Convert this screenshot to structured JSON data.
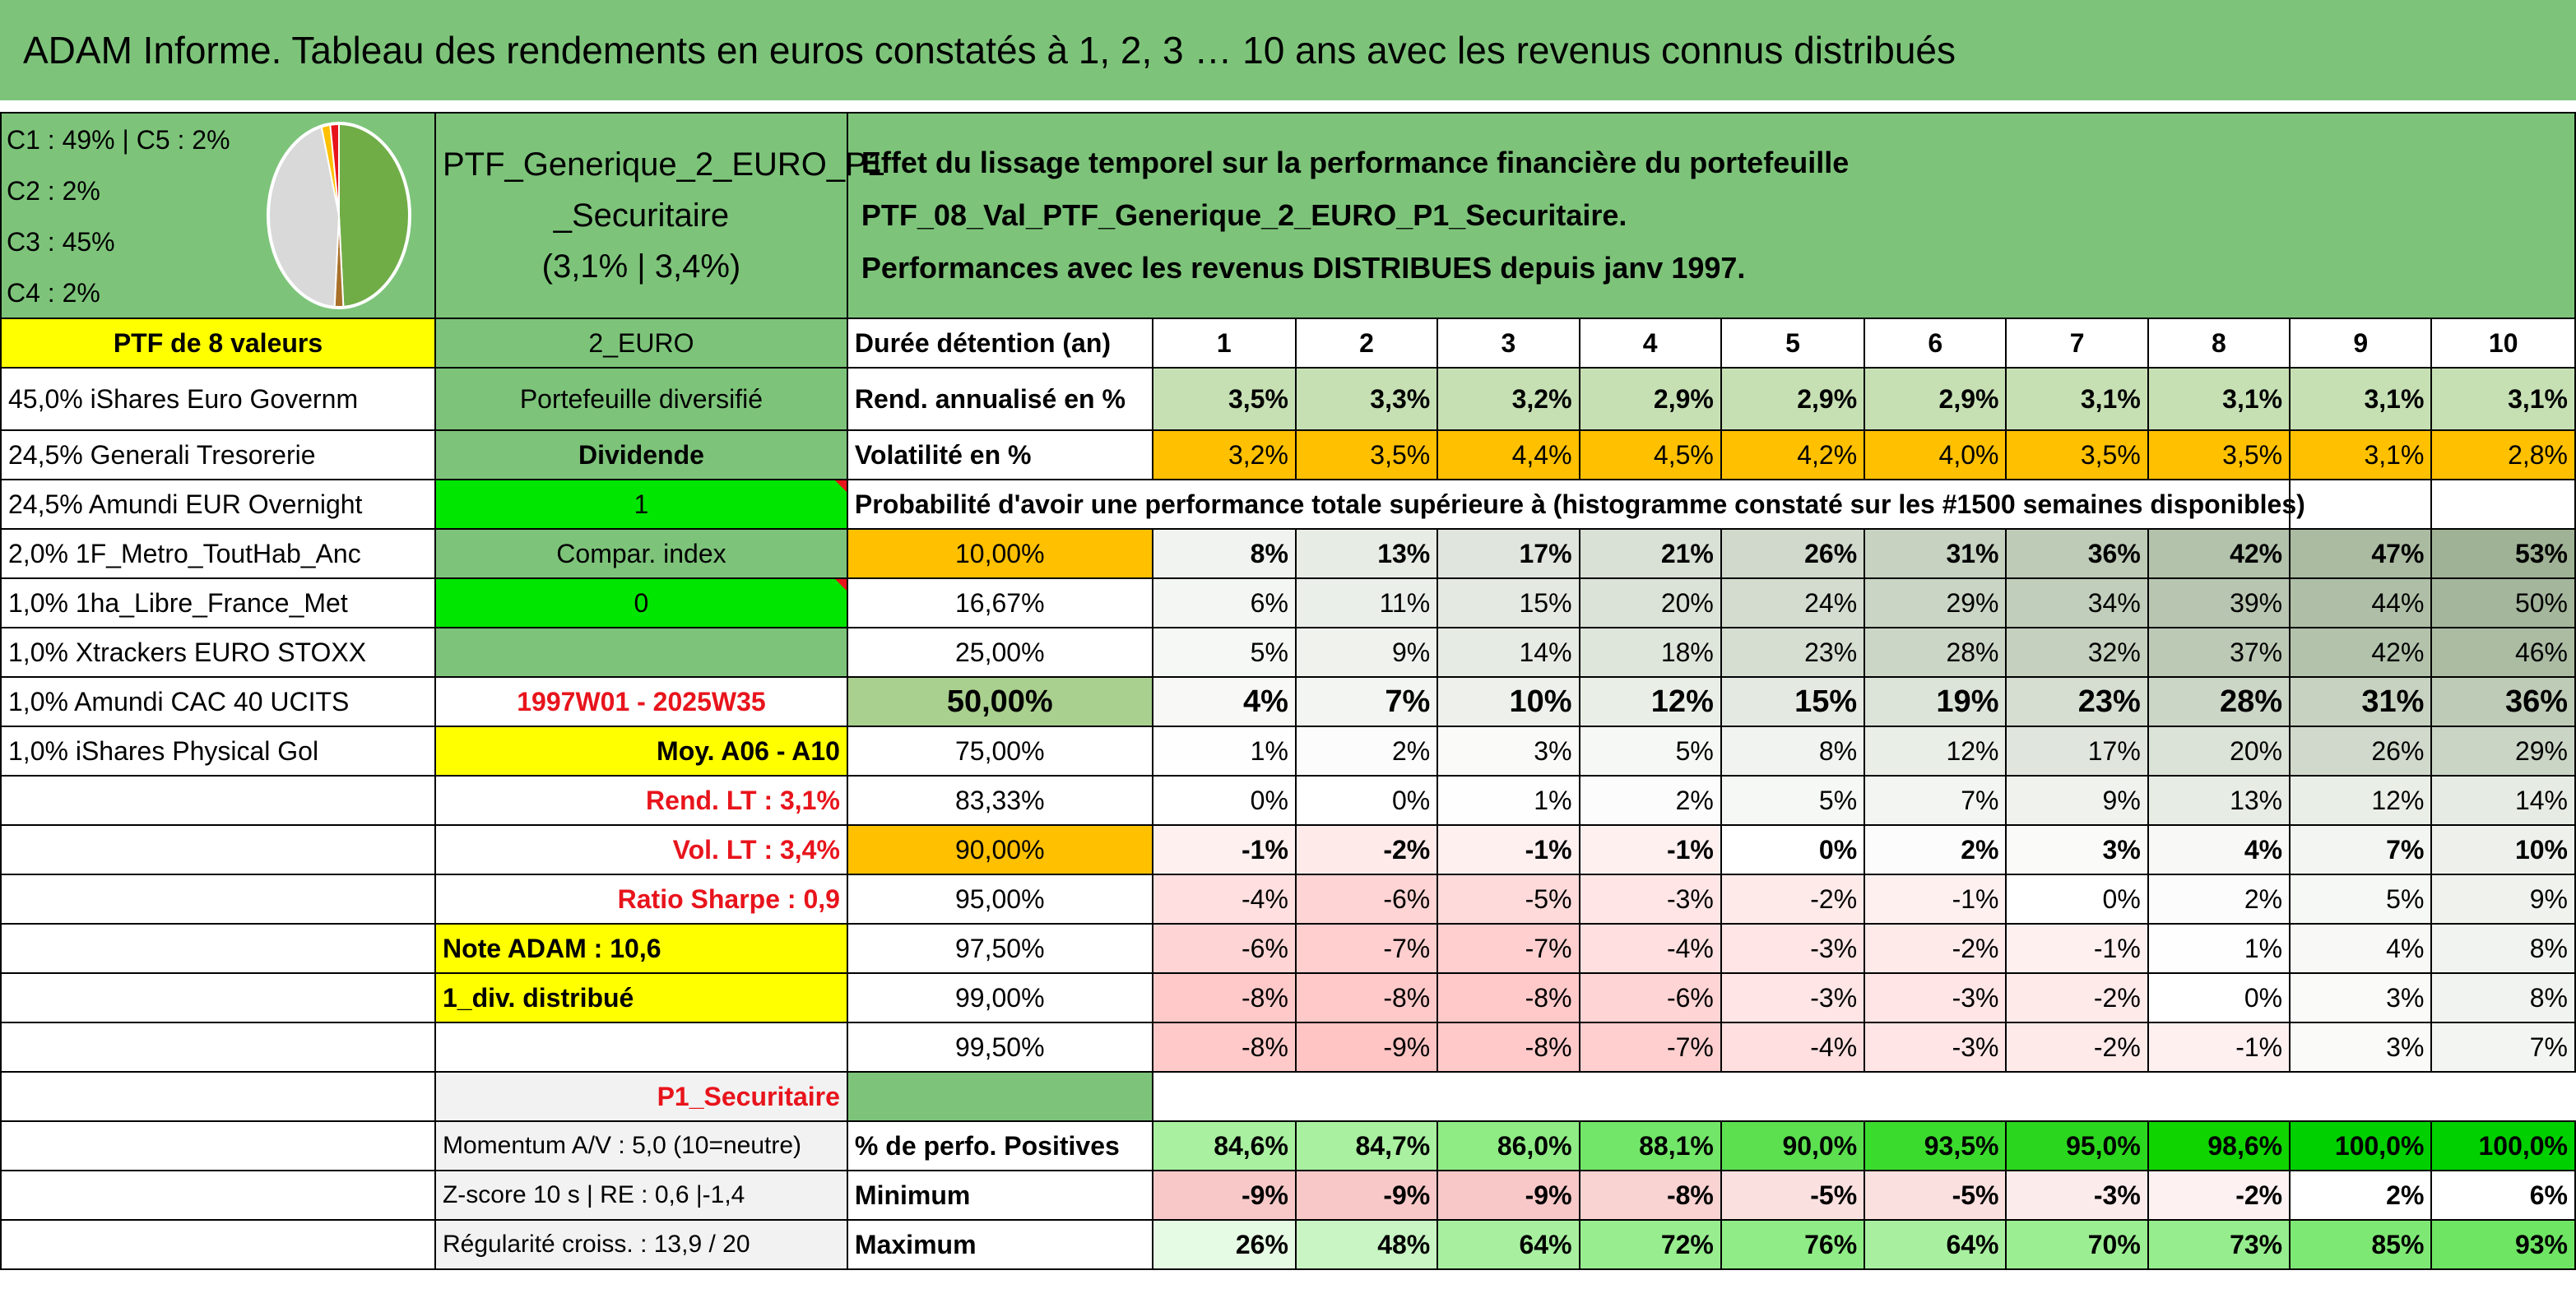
{
  "title": "ADAM Informe. Tableau des rendements en euros constatés à 1, 2, 3 … 10 ans avec les revenus connus distribués",
  "pie": {
    "labels": [
      "C1 : 49% | C5 : 2%",
      "C2 : 2%",
      "C3 : 45%",
      "C4 : 2%"
    ],
    "slices": [
      {
        "name": "C1",
        "value": 49,
        "color": "#70ad47"
      },
      {
        "name": "C2",
        "value": 2,
        "color": "#a9702a"
      },
      {
        "name": "C3",
        "value": 45,
        "color": "#d9d9d9"
      },
      {
        "name": "C4",
        "value": 2,
        "color": "#ffc000"
      },
      {
        "name": "C5",
        "value": 2,
        "color": "#e8141c"
      }
    ]
  },
  "ptf": {
    "name_line1": "PTF_Generique_2_EURO_P1",
    "name_line2": "_Securitaire",
    "name_line3": "(3,1% | 3,4%)",
    "effect_line1": "Effet du lissage temporel sur la performance financière du portefeuille PTF_08_Val_PTF_Generique_2_EURO_P1_Securitaire.",
    "effect_line2": "Performances avec les revenus DISTRIBUES depuis janv 1997."
  },
  "left_col": {
    "header": "PTF de 8 valeurs",
    "holdings": [
      "45,0% iShares Euro Governm",
      "24,5% Generali Tresorerie",
      "24,5% Amundi EUR Overnight",
      "2,0% 1F_Metro_ToutHab_Anc",
      "1,0% 1ha_Libre_France_Met",
      "1,0% Xtrackers EURO STOXX",
      "1,0% Amundi CAC 40 UCITS",
      "1,0% iShares Physical Gol"
    ]
  },
  "mid_col": {
    "currency": "2_EURO",
    "type": "Portefeuille diversifié",
    "dividend": "Dividende",
    "dividend_value": "1",
    "compar": "Compar. index",
    "compar_value": "0",
    "period": "1997W01 - 2025W35",
    "moy": "Moy. A06 - A10",
    "rend_lt": "Rend. LT : 3,1%",
    "vol_lt": "Vol. LT : 3,4%",
    "sharpe": "Ratio Sharpe : 0,9",
    "note": "Note ADAM : 10,6",
    "div": "1_div. distribué",
    "profile": "P1_Securitaire",
    "momentum": "Momentum A/V : 5,0 (10=neutre)",
    "zscore": "Z-score 10 s | RE : 0,6 |-1,4",
    "regularite": "Régularité croiss. : 13,9 / 20"
  },
  "table": {
    "duration_label": "Durée détention (an)",
    "years": [
      "1",
      "2",
      "3",
      "4",
      "5",
      "6",
      "7",
      "8",
      "9",
      "10"
    ],
    "rend_label": "Rend. annualisé en %",
    "rend": [
      "3,5%",
      "3,3%",
      "3,2%",
      "2,9%",
      "2,9%",
      "2,9%",
      "3,1%",
      "3,1%",
      "3,1%",
      "3,1%"
    ],
    "vol_label": "Volatilité en %",
    "vol": [
      "3,2%",
      "3,5%",
      "4,4%",
      "4,5%",
      "4,2%",
      "4,0%",
      "3,5%",
      "3,5%",
      "3,1%",
      "2,8%"
    ],
    "prob_label": "Probabilité d'avoir une performance totale supérieure à (histogramme constaté sur les #1500 semaines disponibles)",
    "prob_rows": [
      {
        "q": "10,00%",
        "v": [
          "8%",
          "13%",
          "17%",
          "21%",
          "26%",
          "31%",
          "36%",
          "42%",
          "47%",
          "53%"
        ]
      },
      {
        "q": "16,67%",
        "v": [
          "6%",
          "11%",
          "15%",
          "20%",
          "24%",
          "29%",
          "34%",
          "39%",
          "44%",
          "50%"
        ]
      },
      {
        "q": "25,00%",
        "v": [
          "5%",
          "9%",
          "14%",
          "18%",
          "23%",
          "28%",
          "32%",
          "37%",
          "42%",
          "46%"
        ]
      },
      {
        "q": "50,00%",
        "v": [
          "4%",
          "7%",
          "10%",
          "12%",
          "15%",
          "19%",
          "23%",
          "28%",
          "31%",
          "36%"
        ]
      },
      {
        "q": "75,00%",
        "v": [
          "1%",
          "2%",
          "3%",
          "5%",
          "8%",
          "12%",
          "17%",
          "20%",
          "26%",
          "29%"
        ]
      },
      {
        "q": "83,33%",
        "v": [
          "0%",
          "0%",
          "1%",
          "2%",
          "5%",
          "7%",
          "9%",
          "13%",
          "12%",
          "14%"
        ]
      },
      {
        "q": "90,00%",
        "v": [
          "-1%",
          "-2%",
          "-1%",
          "-1%",
          "0%",
          "2%",
          "3%",
          "4%",
          "7%",
          "10%"
        ]
      },
      {
        "q": "95,00%",
        "v": [
          "-4%",
          "-6%",
          "-5%",
          "-3%",
          "-2%",
          "-1%",
          "0%",
          "2%",
          "5%",
          "9%"
        ]
      },
      {
        "q": "97,50%",
        "v": [
          "-6%",
          "-7%",
          "-7%",
          "-4%",
          "-3%",
          "-2%",
          "-1%",
          "1%",
          "4%",
          "8%"
        ]
      },
      {
        "q": "99,00%",
        "v": [
          "-8%",
          "-8%",
          "-8%",
          "-6%",
          "-3%",
          "-3%",
          "-2%",
          "0%",
          "3%",
          "8%"
        ]
      },
      {
        "q": "99,50%",
        "v": [
          "-8%",
          "-9%",
          "-8%",
          "-7%",
          "-4%",
          "-3%",
          "-2%",
          "-1%",
          "3%",
          "7%"
        ]
      }
    ],
    "pos_label": "% de perfo. Positives",
    "pos": [
      "84,6%",
      "84,7%",
      "86,0%",
      "88,1%",
      "90,0%",
      "93,5%",
      "95,0%",
      "98,6%",
      "100,0%",
      "100,0%"
    ],
    "min_label": "Minimum",
    "min": [
      "-9%",
      "-9%",
      "-9%",
      "-8%",
      "-5%",
      "-5%",
      "-3%",
      "-2%",
      "2%",
      "6%"
    ],
    "max_label": "Maximum",
    "max": [
      "26%",
      "48%",
      "64%",
      "72%",
      "76%",
      "64%",
      "70%",
      "73%",
      "85%",
      "93%"
    ]
  },
  "colors": {
    "header_green": "#7dc47a",
    "yellow": "#ffff00",
    "bright_green": "#00e600",
    "orange": "#ffc000",
    "red_text": "#e8141c"
  }
}
